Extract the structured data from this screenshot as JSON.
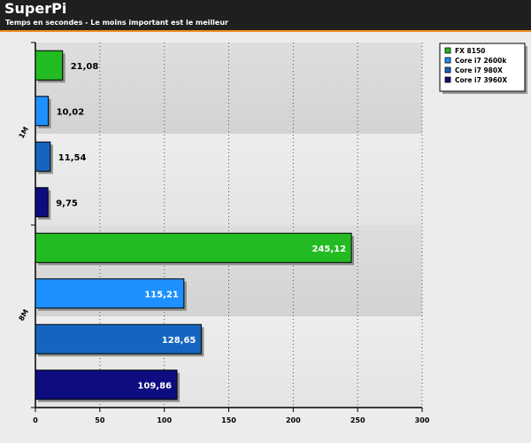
{
  "header": {
    "title": "SuperPi",
    "subtitle": "Temps en secondes - Le moins important est le meilleur"
  },
  "chart_data": {
    "type": "bar",
    "orientation": "horizontal",
    "categories": [
      "1M",
      "8M"
    ],
    "series": [
      {
        "name": "FX 8150",
        "color": "#22bb22",
        "values": [
          21.08,
          245.12
        ],
        "labels": [
          "21,08",
          "245,12"
        ]
      },
      {
        "name": "Core i7 2600k",
        "color": "#1e90ff",
        "values": [
          10.02,
          115.21
        ],
        "labels": [
          "10,02",
          "115,21"
        ]
      },
      {
        "name": "Core i7 980X",
        "color": "#1565c0",
        "values": [
          11.54,
          128.65
        ],
        "labels": [
          "11,54",
          "128,65"
        ]
      },
      {
        "name": "Core i7 3960X",
        "color": "#0d0d80",
        "values": [
          9.75,
          109.86
        ],
        "labels": [
          "9,75",
          "109,86"
        ]
      }
    ],
    "xlim": [
      0,
      300
    ],
    "xticks": [
      "0",
      "50",
      "100",
      "150",
      "200",
      "250",
      "300"
    ],
    "xlabel": "",
    "ylabel": "",
    "grid": true,
    "legend_position": "top-right"
  }
}
